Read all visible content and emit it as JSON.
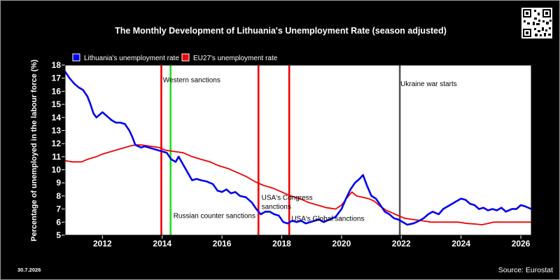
{
  "chart_data": {
    "type": "line",
    "title": "The Monthly Development of Lithuania's Unemployment Rate (season adjusted)",
    "ylabel": "Percentage of unemployed in the labour force (%)",
    "xlabel": "",
    "xlim": [
      2010.75,
      2026.35
    ],
    "ylim": [
      5,
      18
    ],
    "x_ticks": [
      2012,
      2014,
      2016,
      2018,
      2020,
      2022,
      2024,
      2026
    ],
    "y_ticks": [
      5,
      6,
      7,
      8,
      9,
      10,
      11,
      12,
      13,
      14,
      15,
      16,
      17,
      18
    ],
    "grid": false,
    "legend_position": "top-left",
    "series": [
      {
        "name": "Lithuania's unemployment rate",
        "color": "#0000ee",
        "points": [
          [
            2010.75,
            17.5
          ],
          [
            2010.9,
            17.0
          ],
          [
            2011.05,
            16.6
          ],
          [
            2011.2,
            16.3
          ],
          [
            2011.35,
            16.1
          ],
          [
            2011.5,
            15.6
          ],
          [
            2011.6,
            15.0
          ],
          [
            2011.7,
            14.3
          ],
          [
            2011.8,
            14.0
          ],
          [
            2011.9,
            14.2
          ],
          [
            2012.0,
            14.4
          ],
          [
            2012.15,
            14.1
          ],
          [
            2012.3,
            13.8
          ],
          [
            2012.45,
            13.6
          ],
          [
            2012.6,
            13.6
          ],
          [
            2012.75,
            13.5
          ],
          [
            2012.9,
            13.0
          ],
          [
            2013.0,
            12.5
          ],
          [
            2013.1,
            11.9
          ],
          [
            2013.2,
            11.8
          ],
          [
            2013.3,
            11.7
          ],
          [
            2013.4,
            11.8
          ],
          [
            2013.55,
            11.7
          ],
          [
            2013.7,
            11.6
          ],
          [
            2013.85,
            11.5
          ],
          [
            2014.0,
            11.4
          ],
          [
            2014.15,
            11.3
          ],
          [
            2014.3,
            10.8
          ],
          [
            2014.45,
            10.6
          ],
          [
            2014.55,
            11.0
          ],
          [
            2014.7,
            10.4
          ],
          [
            2014.85,
            9.8
          ],
          [
            2015.0,
            9.2
          ],
          [
            2015.15,
            9.3
          ],
          [
            2015.3,
            9.2
          ],
          [
            2015.5,
            9.1
          ],
          [
            2015.7,
            8.9
          ],
          [
            2015.85,
            8.4
          ],
          [
            2016.0,
            8.3
          ],
          [
            2016.15,
            8.5
          ],
          [
            2016.3,
            8.2
          ],
          [
            2016.45,
            8.3
          ],
          [
            2016.6,
            8.0
          ],
          [
            2016.8,
            7.9
          ],
          [
            2017.0,
            7.5
          ],
          [
            2017.15,
            7.0
          ],
          [
            2017.3,
            6.6
          ],
          [
            2017.45,
            6.8
          ],
          [
            2017.6,
            6.8
          ],
          [
            2017.75,
            6.6
          ],
          [
            2017.9,
            6.5
          ],
          [
            2018.05,
            6.0
          ],
          [
            2018.2,
            5.9
          ],
          [
            2018.35,
            6.1
          ],
          [
            2018.5,
            6.0
          ],
          [
            2018.65,
            6.1
          ],
          [
            2018.8,
            5.9
          ],
          [
            2018.95,
            6.0
          ],
          [
            2019.1,
            6.1
          ],
          [
            2019.25,
            6.2
          ],
          [
            2019.4,
            6.0
          ],
          [
            2019.6,
            6.2
          ],
          [
            2019.8,
            6.4
          ],
          [
            2020.0,
            7.0
          ],
          [
            2020.15,
            7.8
          ],
          [
            2020.3,
            8.5
          ],
          [
            2020.45,
            9.0
          ],
          [
            2020.6,
            9.3
          ],
          [
            2020.72,
            9.6
          ],
          [
            2020.85,
            8.8
          ],
          [
            2021.0,
            8.0
          ],
          [
            2021.15,
            7.8
          ],
          [
            2021.3,
            7.3
          ],
          [
            2021.45,
            6.8
          ],
          [
            2021.6,
            6.6
          ],
          [
            2021.75,
            6.3
          ],
          [
            2021.9,
            6.2
          ],
          [
            2022.05,
            6.0
          ],
          [
            2022.2,
            5.8
          ],
          [
            2022.4,
            5.9
          ],
          [
            2022.6,
            6.1
          ],
          [
            2022.75,
            6.3
          ],
          [
            2022.9,
            6.6
          ],
          [
            2023.05,
            6.8
          ],
          [
            2023.25,
            6.6
          ],
          [
            2023.4,
            7.0
          ],
          [
            2023.55,
            7.2
          ],
          [
            2023.7,
            7.4
          ],
          [
            2023.85,
            7.6
          ],
          [
            2024.0,
            7.8
          ],
          [
            2024.15,
            7.7
          ],
          [
            2024.3,
            7.4
          ],
          [
            2024.45,
            7.3
          ],
          [
            2024.6,
            7.0
          ],
          [
            2024.75,
            7.1
          ],
          [
            2024.9,
            6.9
          ],
          [
            2025.05,
            7.0
          ],
          [
            2025.2,
            6.9
          ],
          [
            2025.35,
            7.1
          ],
          [
            2025.5,
            6.8
          ],
          [
            2025.7,
            7.0
          ],
          [
            2025.85,
            7.0
          ],
          [
            2026.0,
            7.3
          ],
          [
            2026.15,
            7.2
          ],
          [
            2026.35,
            7.0
          ]
        ]
      },
      {
        "name": "EU27's unemployment rate",
        "color": "#ee0000",
        "points": [
          [
            2010.75,
            10.7
          ],
          [
            2011.0,
            10.6
          ],
          [
            2011.3,
            10.6
          ],
          [
            2011.5,
            10.8
          ],
          [
            2011.8,
            11.0
          ],
          [
            2012.0,
            11.2
          ],
          [
            2012.3,
            11.4
          ],
          [
            2012.6,
            11.6
          ],
          [
            2012.9,
            11.8
          ],
          [
            2013.1,
            11.9
          ],
          [
            2013.3,
            11.9
          ],
          [
            2013.6,
            11.8
          ],
          [
            2013.9,
            11.7
          ],
          [
            2014.1,
            11.5
          ],
          [
            2014.4,
            11.4
          ],
          [
            2014.7,
            11.3
          ],
          [
            2015.0,
            11.0
          ],
          [
            2015.3,
            10.8
          ],
          [
            2015.6,
            10.6
          ],
          [
            2015.9,
            10.3
          ],
          [
            2016.2,
            10.1
          ],
          [
            2016.5,
            9.8
          ],
          [
            2016.8,
            9.5
          ],
          [
            2017.1,
            9.1
          ],
          [
            2017.4,
            8.8
          ],
          [
            2017.7,
            8.6
          ],
          [
            2018.0,
            8.3
          ],
          [
            2018.3,
            8.0
          ],
          [
            2018.6,
            7.8
          ],
          [
            2018.9,
            7.5
          ],
          [
            2019.2,
            7.3
          ],
          [
            2019.5,
            7.1
          ],
          [
            2019.8,
            7.0
          ],
          [
            2020.0,
            7.3
          ],
          [
            2020.2,
            7.9
          ],
          [
            2020.35,
            8.3
          ],
          [
            2020.5,
            8.0
          ],
          [
            2020.7,
            7.9
          ],
          [
            2020.9,
            7.8
          ],
          [
            2021.1,
            7.6
          ],
          [
            2021.3,
            7.2
          ],
          [
            2021.5,
            6.9
          ],
          [
            2021.7,
            6.7
          ],
          [
            2021.9,
            6.5
          ],
          [
            2022.1,
            6.3
          ],
          [
            2022.4,
            6.2
          ],
          [
            2022.7,
            6.1
          ],
          [
            2023.0,
            6.0
          ],
          [
            2023.3,
            6.0
          ],
          [
            2023.6,
            6.0
          ],
          [
            2023.9,
            6.0
          ],
          [
            2024.2,
            5.9
          ],
          [
            2024.5,
            5.85
          ],
          [
            2024.7,
            5.8
          ],
          [
            2024.9,
            5.9
          ],
          [
            2025.1,
            6.0
          ],
          [
            2025.4,
            6.0
          ],
          [
            2025.7,
            6.0
          ],
          [
            2026.0,
            6.0
          ],
          [
            2026.35,
            6.0
          ]
        ]
      }
    ],
    "vertical_markers": [
      {
        "x": 2013.97,
        "color": "#ee0000"
      },
      {
        "x": 2014.28,
        "color": "#22dd22"
      },
      {
        "x": 2017.22,
        "color": "#ee0000"
      },
      {
        "x": 2018.25,
        "color": "#ee0000"
      },
      {
        "x": 2021.95,
        "color": "#555555"
      }
    ],
    "annotations": [
      {
        "text": "Western sanctions",
        "x": 2014.0,
        "y": 16.7
      },
      {
        "text": "Russian counter sanctions",
        "x": 2014.35,
        "y": 6.3
      },
      {
        "text": "USA's Congress",
        "x": 2017.3,
        "y": 7.7
      },
      {
        "text": "sanctions",
        "x": 2017.3,
        "y": 7.0
      },
      {
        "text": "USA's Global sanctions",
        "x": 2018.3,
        "y": 6.1
      },
      {
        "text": "Ukraine war starts",
        "x": 2021.95,
        "y": 16.4
      }
    ]
  },
  "footer": {
    "date": "30.7.2026",
    "source": "Source: Eurostat"
  },
  "colors": {
    "background": "#000000",
    "plot_area": "#ffffff"
  }
}
